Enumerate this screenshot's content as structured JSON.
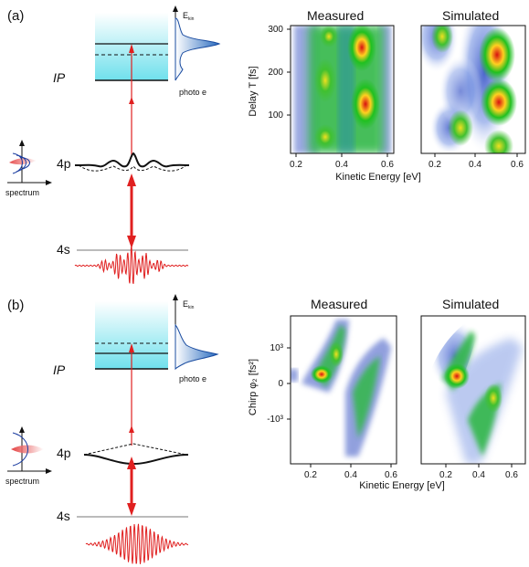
{
  "panels": [
    {
      "label": "(a)",
      "ip_label": "IP",
      "p_level": "4p",
      "s_level": "4s",
      "ekin_label": "E",
      "ekin_sub": "kin",
      "photo_label": "photo e",
      "spectrum_label": "spectrum",
      "measured_title": "Measured",
      "simulated_title": "Simulated",
      "ylabel": "Delay T [fs]",
      "xlabel": "Kinetic Energy [eV]",
      "yticks": [
        "300",
        "200",
        "100"
      ],
      "xticks_measured": [
        "0.2",
        "0.4",
        "0.6"
      ],
      "xticks_simulated": [
        "0.2",
        "0.4",
        "0.6"
      ]
    },
    {
      "label": "(b)",
      "ip_label": "IP",
      "p_level": "4p",
      "s_level": "4s",
      "ekin_label": "E",
      "ekin_sub": "kin",
      "photo_label": "photo e",
      "spectrum_label": "spectrum",
      "measured_title": "Measured",
      "simulated_title": "Simulated",
      "ylabel": "Chirp φ₂ [fs²]",
      "xlabel": "Kinetic Energy [eV]",
      "yticks": [
        "10³",
        "0",
        "-10³"
      ],
      "xticks_measured": [
        "0.2",
        "0.4",
        "0.6"
      ],
      "xticks_simulated": [
        "0.2",
        "0.4",
        "0.6"
      ]
    }
  ],
  "colors": {
    "arrow": "#e02020",
    "continuum": "#7fe3ef",
    "level": "#bbbbbb",
    "heat_low": "#3050d0",
    "heat_mid": "#30c040",
    "heat_high": "#e01010"
  }
}
